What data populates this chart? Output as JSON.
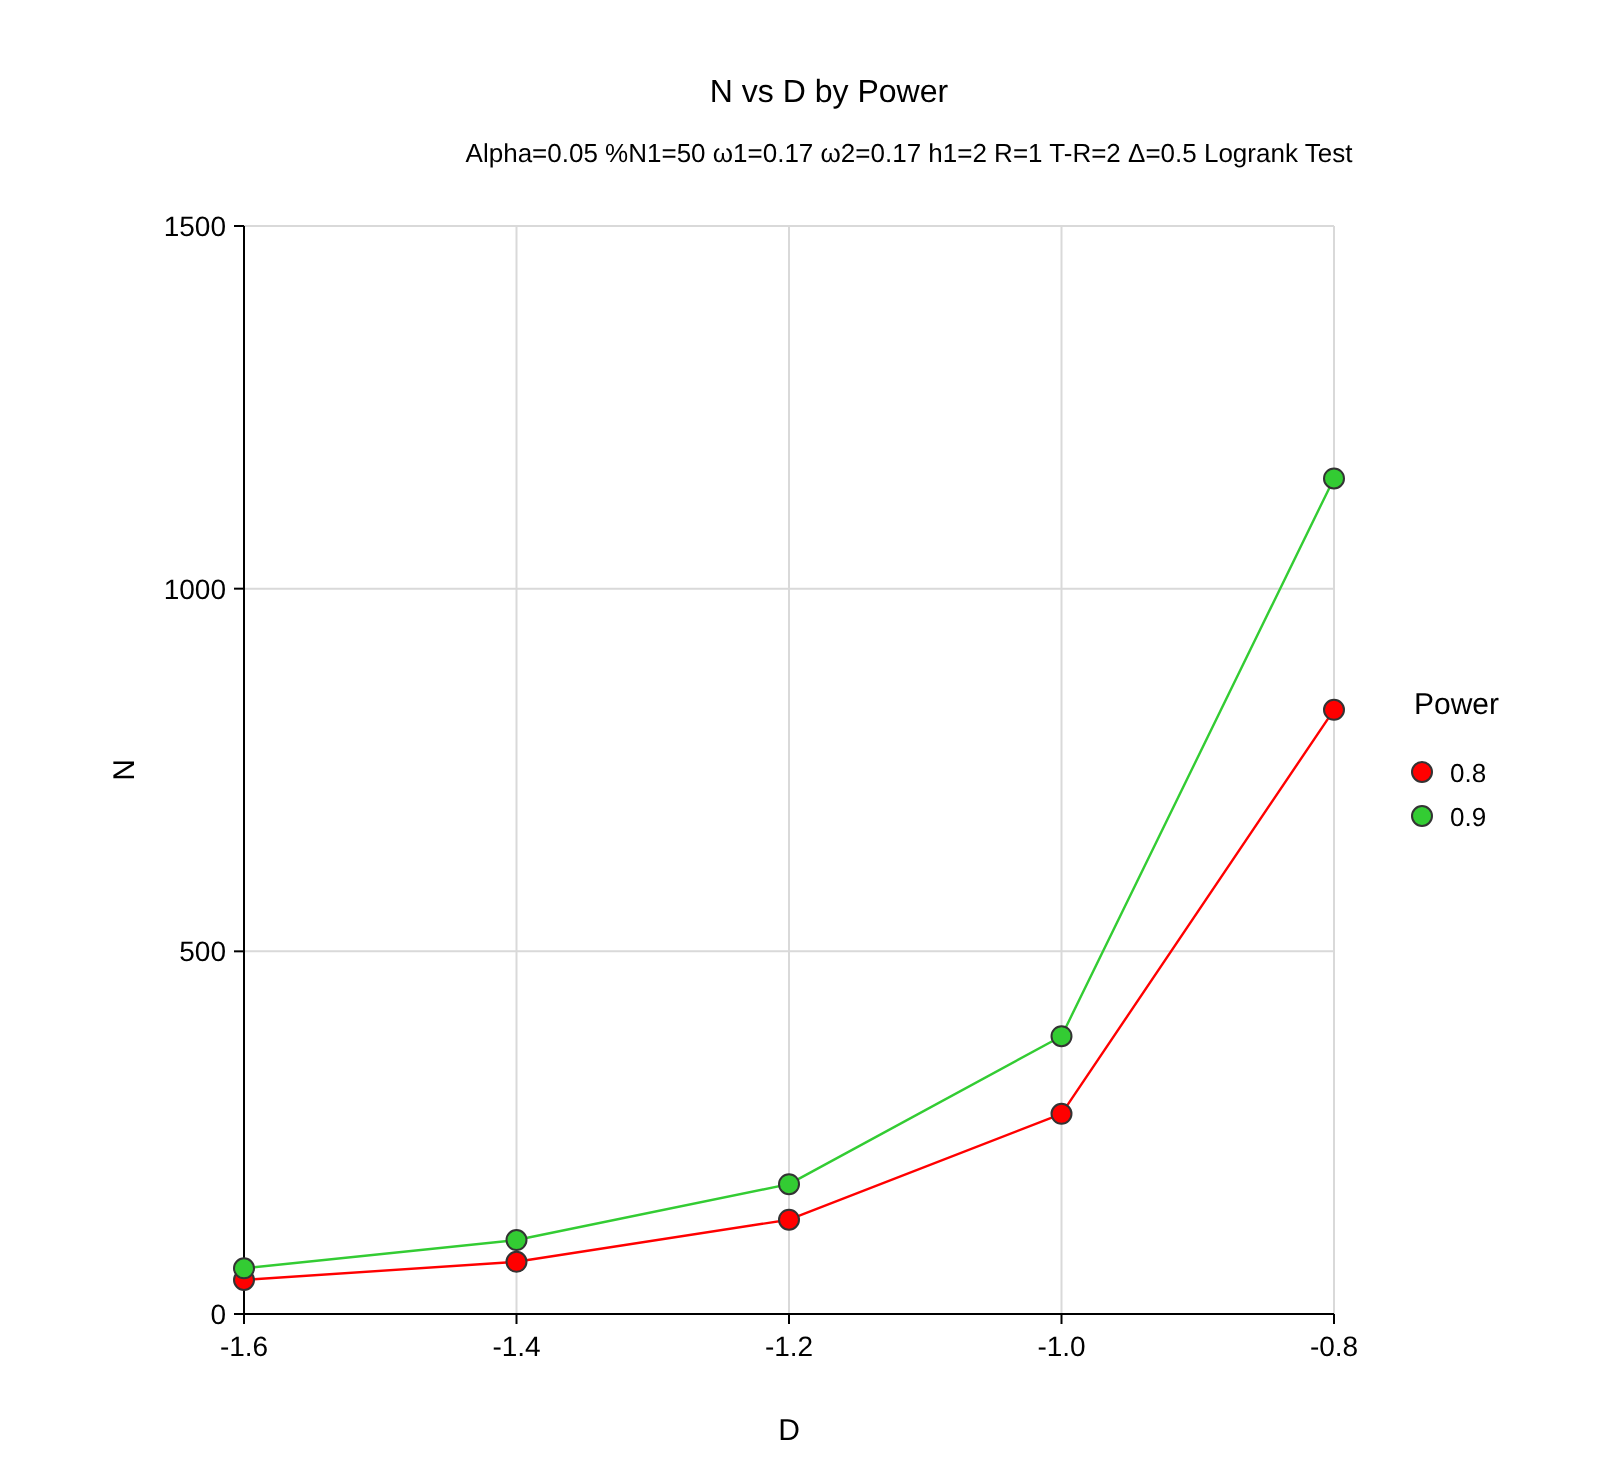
{
  "chart_data": {
    "type": "line",
    "title": "N vs D by Power",
    "subtitle": "Alpha=0.05 %N1=50 ω1=0.17 ω2=0.17 h1=2 R=1 T-R=2 Δ=0.5 Logrank Test",
    "xlabel": "D",
    "ylabel": "N",
    "legend_title": "Power",
    "x": [
      -1.6,
      -1.4,
      -1.2,
      -1.0,
      -0.8
    ],
    "series": [
      {
        "name": "0.8",
        "color": "#ff0000",
        "values": [
          47,
          72,
          130,
          276,
          833
        ]
      },
      {
        "name": "0.9",
        "color": "#33cc33",
        "values": [
          63,
          102,
          179,
          383,
          1152
        ]
      }
    ],
    "xlim": [
      -1.6,
      -0.8
    ],
    "xticks": [
      {
        "value": -1.6,
        "label": "-1.6"
      },
      {
        "value": -1.4,
        "label": "-1.4"
      },
      {
        "value": -1.2,
        "label": "-1.2"
      },
      {
        "value": -1.0,
        "label": "-1.0"
      },
      {
        "value": -0.8,
        "label": "-0.8"
      }
    ],
    "ylim": [
      0,
      1500
    ],
    "yticks": [
      0,
      500,
      1000,
      1500
    ],
    "grid": true,
    "legend": "right",
    "marker": "circle",
    "line_style": "solid"
  }
}
